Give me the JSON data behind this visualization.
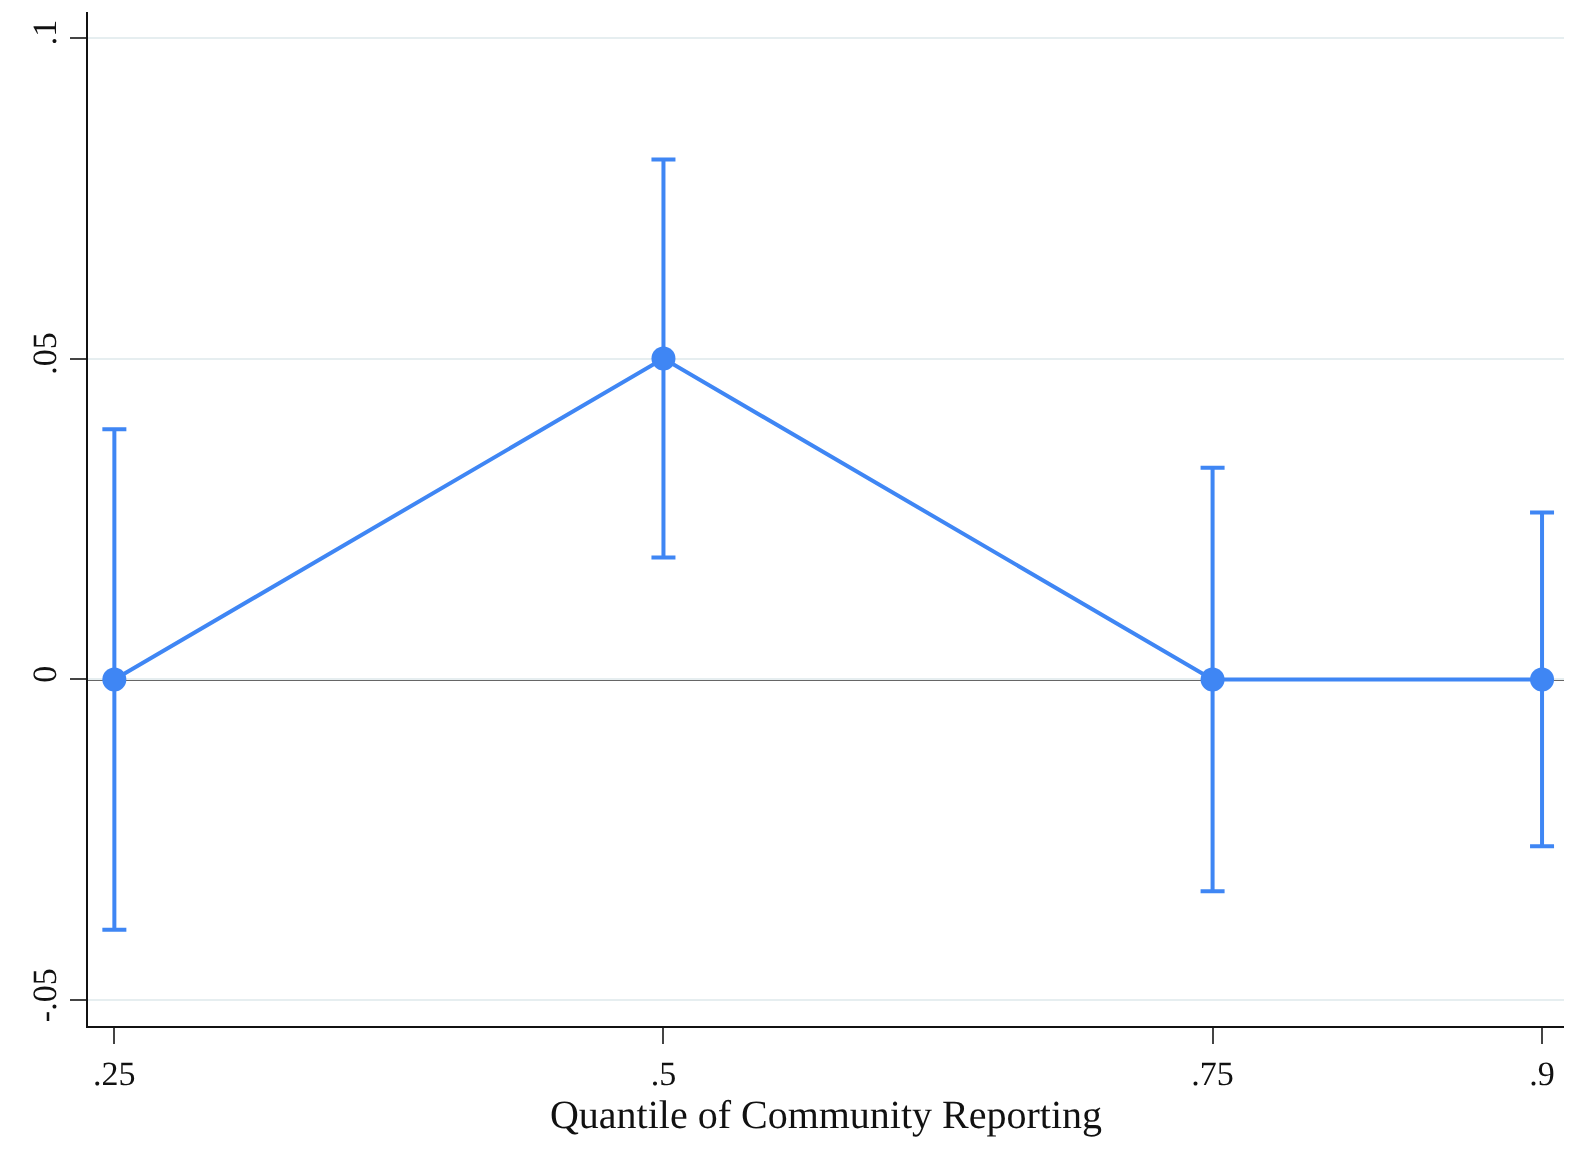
{
  "chart_data": {
    "type": "line",
    "xlabel": "Quantile of Community Reporting",
    "x": [
      0.25,
      0.5,
      0.75,
      0.9
    ],
    "series": [
      {
        "color": "#3f86f4",
        "values": [
          0,
          0.05,
          0,
          0
        ],
        "errors": [
          [
            -0.039,
            0.039
          ],
          [
            0.019,
            0.081
          ],
          [
            -0.033,
            0.033
          ],
          [
            -0.026,
            0.026
          ]
        ]
      }
    ],
    "xlim": [
      0.238,
      0.91
    ],
    "xticks": [
      {
        "value": 0.25,
        "label": ".25"
      },
      {
        "value": 0.5,
        "label": ".5"
      },
      {
        "value": 0.75,
        "label": ".75"
      },
      {
        "value": 0.9,
        "label": ".9"
      }
    ],
    "ylim": [
      -0.054,
      0.104
    ],
    "yticks": [
      {
        "value": -0.05,
        "label": "-.05"
      },
      {
        "value": 0,
        "label": "0"
      },
      {
        "value": 0.05,
        "label": ".05"
      },
      {
        "value": 0.1,
        "label": ".1"
      }
    ],
    "grid": "y",
    "marker": "circle",
    "line_style": "solid",
    "ref_lines": [
      {
        "axis": "y",
        "value": 0,
        "color": "#666666"
      }
    ]
  }
}
